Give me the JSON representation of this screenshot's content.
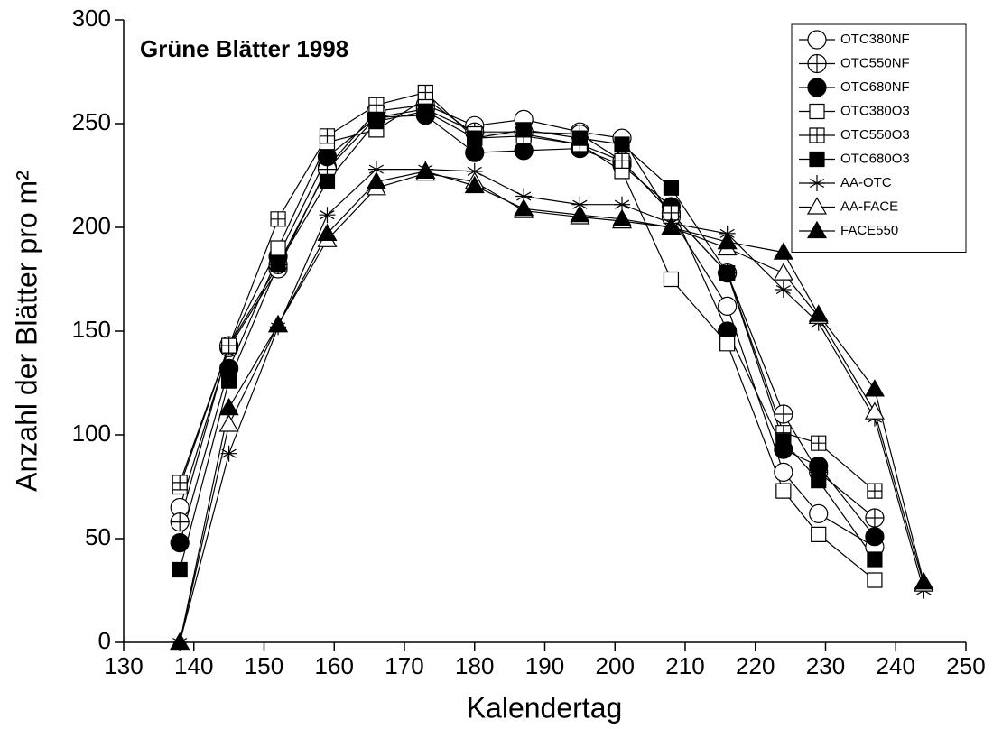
{
  "chart_data": {
    "type": "line",
    "title": "Grüne Blätter 1998",
    "x_label": "Kalendertag",
    "y_label": "Anzahl der Blätter pro m²",
    "x": [
      138,
      145,
      152,
      159,
      166,
      173,
      180,
      187,
      195,
      201,
      208,
      216,
      224,
      229,
      237,
      244
    ],
    "xlim": [
      130,
      250
    ],
    "xticks": [
      130,
      140,
      150,
      160,
      170,
      180,
      190,
      200,
      210,
      220,
      230,
      240,
      250
    ],
    "ylim": [
      0,
      300
    ],
    "yticks": [
      0,
      50,
      100,
      150,
      200,
      250,
      300
    ],
    "grid": false,
    "legend": "upper right",
    "series": [
      {
        "name": "OTC380NF",
        "color": "#000000",
        "marker": "circle-open",
        "values": [
          65,
          142,
          180,
          229,
          256,
          259,
          249,
          252,
          246,
          243,
          205,
          162,
          82,
          62,
          46,
          null
        ]
      },
      {
        "name": "OTC550NF",
        "color": "#000000",
        "marker": "circle-cross",
        "values": [
          58,
          143,
          182,
          228,
          253,
          257,
          246,
          246,
          245,
          232,
          207,
          178,
          110,
          82,
          60,
          null
        ]
      },
      {
        "name": "OTC680NF",
        "color": "#000000",
        "marker": "circle-filled",
        "values": [
          48,
          132,
          186,
          234,
          253,
          254,
          236,
          237,
          238,
          230,
          210,
          150,
          93,
          85,
          51,
          null
        ]
      },
      {
        "name": "OTC380O3",
        "color": "#000000",
        "marker": "square-open",
        "values": [
          75,
          143,
          190,
          241,
          247,
          262,
          245,
          245,
          240,
          227,
          175,
          144,
          73,
          52,
          30,
          null
        ]
      },
      {
        "name": "OTC550O3",
        "color": "#000000",
        "marker": "square-cross",
        "values": [
          77,
          143,
          204,
          244,
          259,
          265,
          243,
          244,
          240,
          232,
          207,
          178,
          101,
          96,
          73,
          null
        ]
      },
      {
        "name": "OTC680O3",
        "color": "#000000",
        "marker": "square-filled",
        "values": [
          35,
          126,
          182,
          222,
          251,
          256,
          243,
          247,
          243,
          240,
          219,
          178,
          97,
          78,
          40,
          null
        ]
      },
      {
        "name": "AA-OTC",
        "color": "#000000",
        "marker": "star",
        "values": [
          0,
          91,
          152,
          206,
          228,
          228,
          227,
          215,
          211,
          211,
          202,
          197,
          170,
          154,
          108,
          25
        ]
      },
      {
        "name": "AA-FACE",
        "color": "#000000",
        "marker": "triangle-open",
        "values": [
          0,
          105,
          153,
          194,
          219,
          226,
          222,
          208,
          205,
          203,
          200,
          190,
          178,
          157,
          111,
          28
        ]
      },
      {
        "name": "FACE550",
        "color": "#000000",
        "marker": "triangle-filled",
        "values": [
          0,
          113,
          153,
          197,
          222,
          227,
          220,
          209,
          206,
          204,
          200,
          193,
          188,
          158,
          122,
          29
        ]
      }
    ]
  }
}
